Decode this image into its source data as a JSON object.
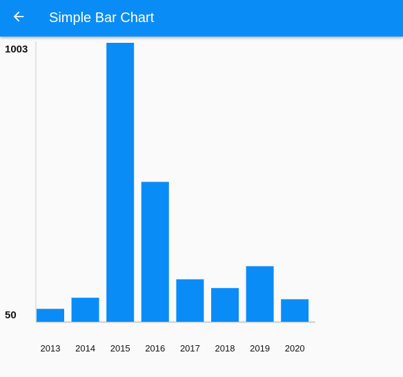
{
  "app_bar": {
    "title": "Simple Bar Chart",
    "back_icon": "arrow-back-icon",
    "color": "#0a8cf6"
  },
  "chart_data": {
    "type": "bar",
    "categories": [
      "2013",
      "2014",
      "2015",
      "2016",
      "2017",
      "2018",
      "2019",
      "2020"
    ],
    "values": [
      94,
      132,
      1003,
      528,
      195,
      165,
      240,
      127
    ],
    "ylim": [
      50,
      1003
    ],
    "y_tick_labels": [
      "1003",
      "50"
    ],
    "bar_color": "#0a8cf6",
    "grid": false
  }
}
